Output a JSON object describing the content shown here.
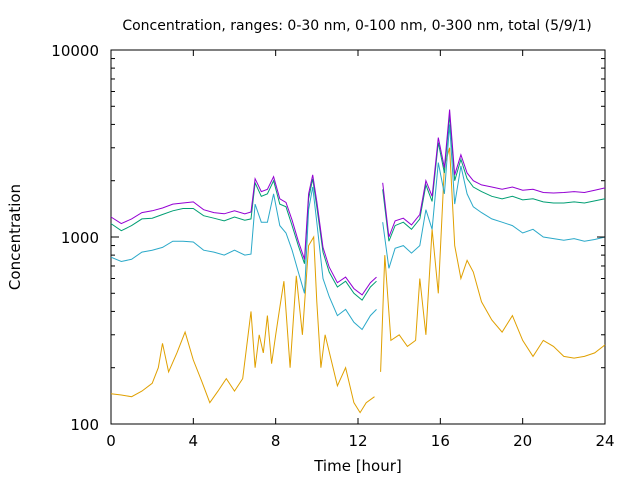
{
  "chart_data": {
    "type": "line",
    "title": "Concentration, ranges: 0-30 nm, 0-100 nm, 0-300 nm, total (5/9/1)",
    "xlabel": "Time [hour]",
    "ylabel": "Concentration",
    "xlim": [
      0,
      24
    ],
    "ylim": [
      100,
      10000
    ],
    "yscale": "log",
    "grid": false,
    "legend": "none",
    "x_ticks": [
      0,
      4,
      8,
      12,
      16,
      20,
      24
    ],
    "x_tick_labels": [
      "0",
      "4",
      "8",
      "12",
      "16",
      "20",
      "24"
    ],
    "y_ticks": [
      100,
      1000,
      10000
    ],
    "y_tick_labels": [
      "100",
      "1000",
      "10000"
    ],
    "series": [
      {
        "color": "#e0a000",
        "x": [
          0,
          0.5,
          1,
          1.5,
          2,
          2.3,
          2.5,
          2.8,
          3.2,
          3.6,
          4,
          4.4,
          4.8,
          5.2,
          5.6,
          6,
          6.4,
          6.8,
          7.0,
          7.2,
          7.4,
          7.6,
          7.8,
          8.0,
          8.2,
          8.4,
          8.7,
          9.0,
          9.3,
          9.6,
          9.85,
          10.0,
          10.2,
          10.4,
          10.7,
          11.0,
          11.4,
          11.8,
          12.1,
          12.4,
          12.8,
          13.0,
          13.1,
          13.3,
          13.6,
          14.0,
          14.4,
          14.8,
          15.0,
          15.3,
          15.6,
          15.9,
          16.2,
          16.45,
          16.7,
          17.0,
          17.3,
          17.6,
          18.0,
          18.5,
          19.0,
          19.5,
          20.0,
          20.5,
          21.0,
          21.5,
          22.0,
          22.5,
          23.0,
          23.5,
          24.0
        ],
        "y": [
          145,
          143,
          140,
          150,
          165,
          200,
          270,
          190,
          240,
          310,
          220,
          170,
          130,
          150,
          175,
          150,
          175,
          400,
          200,
          300,
          240,
          380,
          210,
          300,
          420,
          580,
          200,
          620,
          300,
          900,
          1000,
          450,
          200,
          300,
          220,
          160,
          200,
          130,
          115,
          130,
          140,
          null,
          190,
          800,
          280,
          300,
          260,
          280,
          600,
          300,
          1100,
          500,
          2400,
          3000,
          900,
          600,
          750,
          650,
          450,
          360,
          310,
          380,
          280,
          230,
          280,
          260,
          230,
          225,
          230,
          240,
          265
        ]
      },
      {
        "color": "#2ba9c9",
        "x": [
          0,
          0.5,
          1,
          1.5,
          2,
          2.5,
          3,
          3.5,
          4,
          4.5,
          5,
          5.5,
          6,
          6.5,
          6.8,
          7.0,
          7.3,
          7.6,
          7.9,
          8.2,
          8.5,
          8.8,
          9.1,
          9.4,
          9.6,
          9.8,
          10.0,
          10.3,
          10.6,
          11.0,
          11.4,
          11.8,
          12.2,
          12.6,
          12.9,
          13.0,
          13.2,
          13.5,
          13.8,
          14.2,
          14.6,
          15.0,
          15.3,
          15.6,
          15.9,
          16.2,
          16.45,
          16.7,
          17.0,
          17.3,
          17.6,
          18.0,
          18.5,
          19.0,
          19.5,
          20.0,
          20.5,
          21.0,
          21.5,
          22.0,
          22.5,
          23.0,
          23.5,
          24.0
        ],
        "y": [
          780,
          740,
          760,
          830,
          850,
          880,
          950,
          950,
          940,
          850,
          830,
          800,
          850,
          800,
          810,
          1500,
          1200,
          1200,
          1700,
          1150,
          1050,
          850,
          650,
          500,
          1400,
          1850,
          1200,
          600,
          480,
          380,
          410,
          350,
          320,
          380,
          410,
          null,
          1200,
          680,
          870,
          900,
          820,
          900,
          1400,
          1100,
          2500,
          1700,
          4000,
          1500,
          2400,
          1700,
          1450,
          1350,
          1250,
          1200,
          1150,
          1050,
          1100,
          1000,
          980,
          960,
          980,
          950,
          970,
          1000
        ]
      },
      {
        "color": "#009e73",
        "x": [
          0,
          0.5,
          1,
          1.5,
          2,
          2.5,
          3,
          3.5,
          4,
          4.5,
          5,
          5.5,
          6,
          6.5,
          6.8,
          7.0,
          7.3,
          7.6,
          7.9,
          8.2,
          8.5,
          8.8,
          9.1,
          9.4,
          9.6,
          9.8,
          10.0,
          10.3,
          10.6,
          11.0,
          11.4,
          11.8,
          12.2,
          12.6,
          12.9,
          13.0,
          13.2,
          13.5,
          13.8,
          14.2,
          14.6,
          15.0,
          15.3,
          15.6,
          15.9,
          16.2,
          16.45,
          16.7,
          17.0,
          17.3,
          17.6,
          18.0,
          18.5,
          19.0,
          19.5,
          20.0,
          20.5,
          21.0,
          21.5,
          22.0,
          22.5,
          23.0,
          23.5,
          24.0
        ],
        "y": [
          1180,
          1080,
          1150,
          1250,
          1260,
          1320,
          1380,
          1420,
          1420,
          1300,
          1260,
          1220,
          1280,
          1230,
          1250,
          1950,
          1650,
          1700,
          2000,
          1500,
          1450,
          1150,
          900,
          720,
          1600,
          2050,
          1450,
          830,
          650,
          540,
          580,
          500,
          460,
          540,
          580,
          null,
          1800,
          950,
          1150,
          1200,
          1100,
          1250,
          1900,
          1550,
          3200,
          2200,
          4500,
          2000,
          2600,
          2050,
          1850,
          1750,
          1650,
          1600,
          1650,
          1580,
          1600,
          1540,
          1520,
          1520,
          1540,
          1520,
          1560,
          1600
        ]
      },
      {
        "color": "#9400d3",
        "x": [
          0,
          0.5,
          1,
          1.5,
          2,
          2.5,
          3,
          3.5,
          4,
          4.5,
          5,
          5.5,
          6,
          6.5,
          6.8,
          7.0,
          7.3,
          7.6,
          7.9,
          8.2,
          8.5,
          8.8,
          9.1,
          9.4,
          9.6,
          9.8,
          10.0,
          10.3,
          10.6,
          11.0,
          11.4,
          11.8,
          12.2,
          12.6,
          12.9,
          13.0,
          13.2,
          13.5,
          13.8,
          14.2,
          14.6,
          15.0,
          15.3,
          15.6,
          15.9,
          16.2,
          16.45,
          16.7,
          17.0,
          17.3,
          17.6,
          18.0,
          18.5,
          19.0,
          19.5,
          20.0,
          20.5,
          21.0,
          21.5,
          22.0,
          22.5,
          23.0,
          23.5,
          24.0
        ],
        "y": [
          1280,
          1180,
          1250,
          1350,
          1380,
          1430,
          1500,
          1520,
          1540,
          1400,
          1350,
          1330,
          1380,
          1330,
          1360,
          2050,
          1750,
          1800,
          2100,
          1600,
          1530,
          1230,
          950,
          760,
          1700,
          2150,
          1550,
          880,
          690,
          570,
          610,
          530,
          490,
          570,
          610,
          null,
          1950,
          1000,
          1220,
          1260,
          1160,
          1320,
          2000,
          1650,
          3400,
          2350,
          4800,
          2150,
          2750,
          2200,
          2000,
          1900,
          1850,
          1800,
          1850,
          1780,
          1800,
          1730,
          1720,
          1730,
          1750,
          1730,
          1780,
          1830
        ]
      }
    ]
  }
}
